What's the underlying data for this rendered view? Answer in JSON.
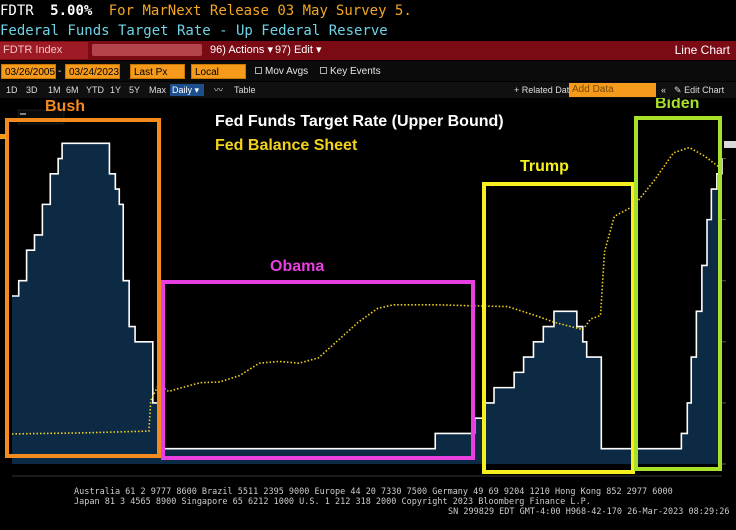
{
  "ticker": {
    "symbol": "FDTR",
    "rate": "5.00%",
    "for_label": "For Mar",
    "next_release": "Next Release 03 May",
    "survey": "Survey 5."
  },
  "subtitle": "Federal Funds Target Rate - Up Federal Reserve",
  "toolbar1": {
    "security": "FDTR Index",
    "actions": "96) Actions ▾",
    "edit": "97) Edit ▾",
    "title": "Line Chart"
  },
  "toolbar2": {
    "start_date": "03/26/2005",
    "end_date": "03/24/2023",
    "price_field": "Last Px",
    "currency": "Local CCY",
    "mov_avgs": "Mov Avgs",
    "key_events": "Key Events"
  },
  "toolbar3": {
    "periods": [
      "1D",
      "3D",
      "1M",
      "6M",
      "YTD",
      "1Y",
      "5Y",
      "Max"
    ],
    "frequency": "Daily",
    "table": "Table",
    "related_data": "+ Related Dat",
    "add_data_placeholder": "Add Data",
    "edit_chart": "Edit Chart"
  },
  "chart_data": {
    "type": "line",
    "series": [
      {
        "name": "Fed Funds Target Rate (Upper Bound)",
        "color": "#ffffff",
        "fill": "#0d2a45",
        "points": [
          [
            2005.23,
            2.75
          ],
          [
            2005.4,
            3.0
          ],
          [
            2005.6,
            3.5
          ],
          [
            2005.8,
            3.75
          ],
          [
            2006.0,
            4.25
          ],
          [
            2006.2,
            4.75
          ],
          [
            2006.4,
            5.0
          ],
          [
            2006.5,
            5.25
          ],
          [
            2007.7,
            4.75
          ],
          [
            2007.85,
            4.5
          ],
          [
            2007.95,
            4.25
          ],
          [
            2008.05,
            3.0
          ],
          [
            2008.2,
            2.25
          ],
          [
            2008.35,
            2.0
          ],
          [
            2008.8,
            1.0
          ],
          [
            2008.96,
            0.25
          ],
          [
            2015.96,
            0.5
          ],
          [
            2016.96,
            0.75
          ],
          [
            2017.2,
            1.0
          ],
          [
            2017.45,
            1.25
          ],
          [
            2017.96,
            1.5
          ],
          [
            2018.2,
            1.75
          ],
          [
            2018.45,
            2.0
          ],
          [
            2018.7,
            2.25
          ],
          [
            2018.97,
            2.5
          ],
          [
            2019.55,
            2.25
          ],
          [
            2019.7,
            2.0
          ],
          [
            2019.8,
            1.75
          ],
          [
            2020.17,
            0.25
          ],
          [
            2022.2,
            0.5
          ],
          [
            2022.35,
            1.0
          ],
          [
            2022.45,
            1.75
          ],
          [
            2022.58,
            2.5
          ],
          [
            2022.72,
            3.25
          ],
          [
            2022.85,
            4.0
          ],
          [
            2022.96,
            4.5
          ],
          [
            2023.1,
            4.75
          ],
          [
            2023.23,
            5.0
          ]
        ]
      },
      {
        "name": "Fed Balance Sheet",
        "color": "#f2d21b",
        "style": "dotted",
        "points": [
          [
            2005.23,
            0.85
          ],
          [
            2007.0,
            0.88
          ],
          [
            2008.7,
            0.93
          ],
          [
            2008.75,
            1.8
          ],
          [
            2008.95,
            2.25
          ],
          [
            2009.2,
            2.05
          ],
          [
            2009.5,
            2.15
          ],
          [
            2010.0,
            2.3
          ],
          [
            2010.5,
            2.32
          ],
          [
            2011.0,
            2.5
          ],
          [
            2011.5,
            2.85
          ],
          [
            2012.0,
            2.9
          ],
          [
            2012.5,
            2.85
          ],
          [
            2013.0,
            3.0
          ],
          [
            2013.5,
            3.5
          ],
          [
            2014.0,
            4.0
          ],
          [
            2014.5,
            4.4
          ],
          [
            2014.9,
            4.5
          ],
          [
            2016.0,
            4.5
          ],
          [
            2017.0,
            4.47
          ],
          [
            2017.8,
            4.45
          ],
          [
            2018.5,
            4.2
          ],
          [
            2019.0,
            4.0
          ],
          [
            2019.7,
            3.8
          ],
          [
            2019.9,
            4.1
          ],
          [
            2020.15,
            4.2
          ],
          [
            2020.25,
            6.0
          ],
          [
            2020.5,
            7.0
          ],
          [
            2021.0,
            7.3
          ],
          [
            2021.5,
            8.0
          ],
          [
            2022.0,
            8.8
          ],
          [
            2022.4,
            8.95
          ],
          [
            2022.8,
            8.7
          ],
          [
            2023.15,
            8.4
          ],
          [
            2023.23,
            8.7
          ]
        ]
      }
    ],
    "xlim": [
      2005.23,
      2023.23
    ],
    "ylim": [
      0,
      5.5
    ],
    "y2lim": [
      0,
      9.5
    ],
    "legend": [
      "Fed Funds Target Rate (Upper Bound)",
      "Fed Balance Sheet"
    ],
    "annotations": [
      {
        "label": "Bush",
        "color": "#f58a1f",
        "x_start": 2005.23,
        "x_end": 2009.05
      },
      {
        "label": "Obama",
        "color": "#e83fe0",
        "x_start": 2009.05,
        "x_end": 2017.05
      },
      {
        "label": "Trump",
        "color": "#f5f01e",
        "x_start": 2017.05,
        "x_end": 2021.05
      },
      {
        "label": "Biden",
        "color": "#a8e02a",
        "x_start": 2021.05,
        "x_end": 2023.23
      }
    ]
  },
  "footer": {
    "line1": "Australia 61 2 9777 8600 Brazil 5511 2395 9000 Europe 44 20 7330 7500 Germany 49 69 9204 1210 Hong Kong 852 2977 6000",
    "line2": "Japan 81 3 4565 8900        Singapore 65 6212 1000      U.S. 1 212 318 2000          Copyright 2023 Bloomberg Finance L.P.",
    "line3": "SN 299829 EDT  GMT-4:00 H968-42-170 26-Mar-2023 08:29:26"
  }
}
